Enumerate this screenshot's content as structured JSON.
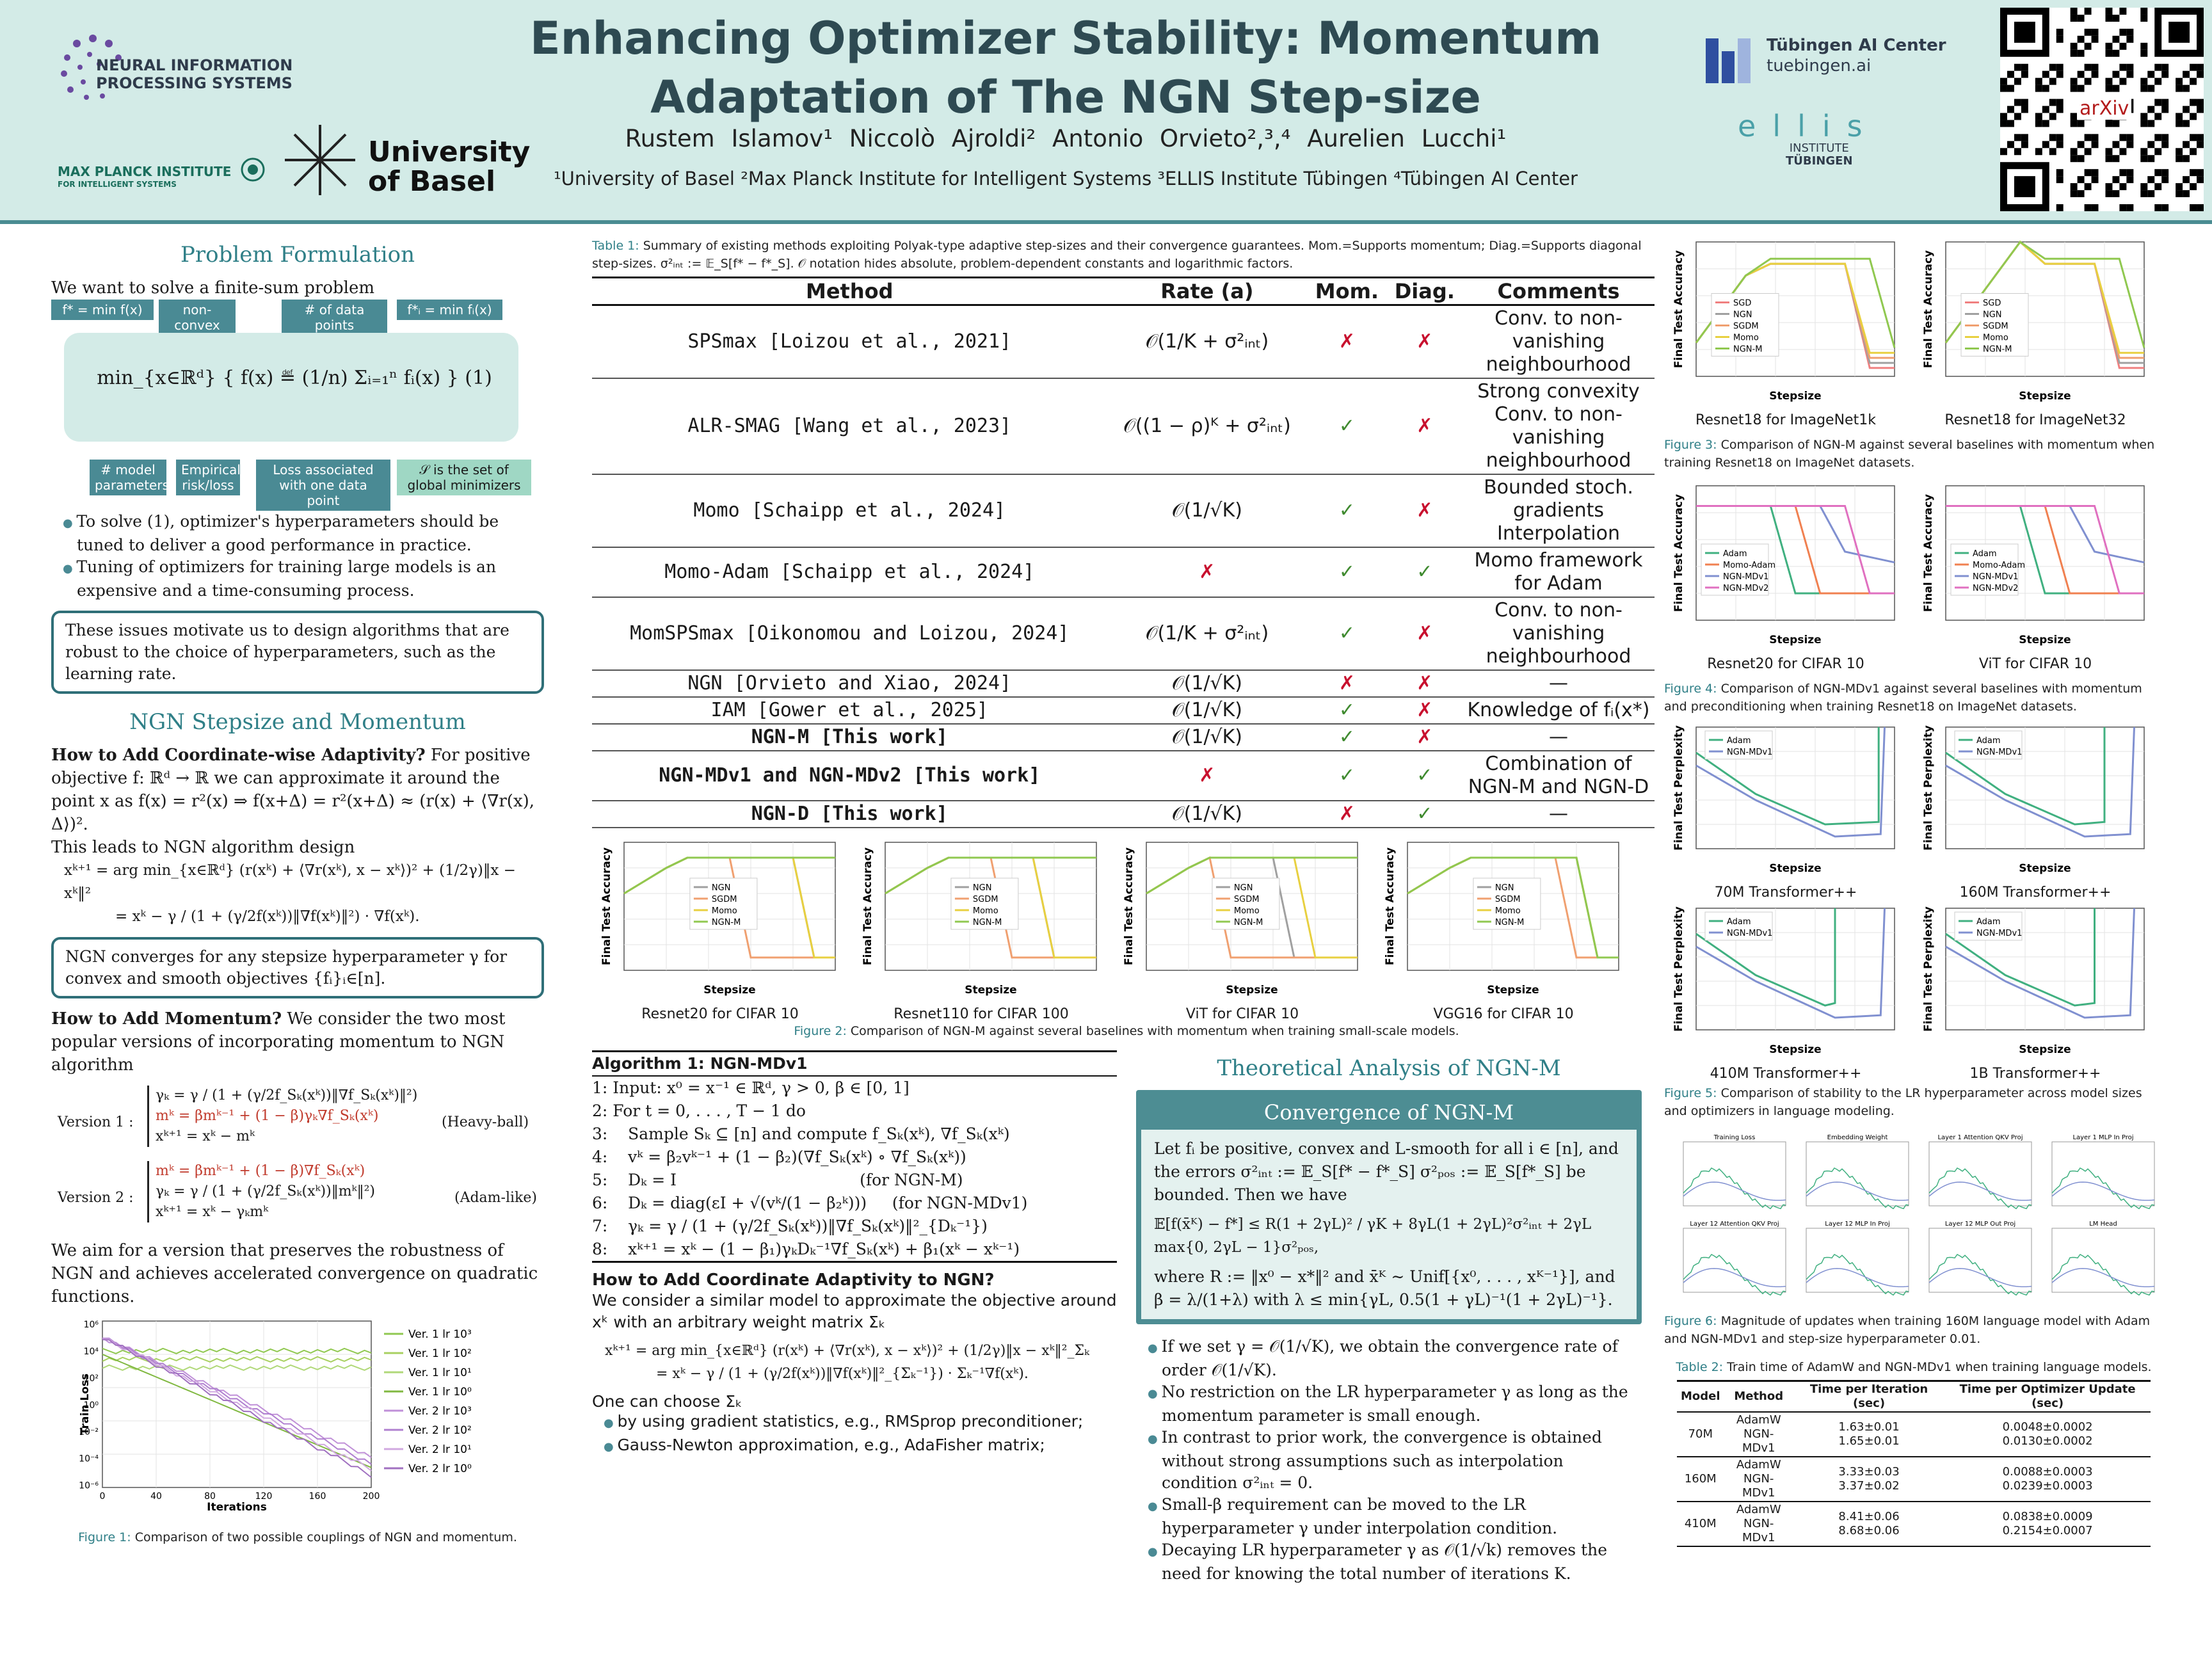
{
  "header": {
    "title": "Enhancing Optimizer Stability: Momentum Adaptation of The NGN Step-size",
    "authors": "Rustem Islamov¹   Niccolò Ajroldi²   Antonio Orvieto²,³,⁴   Aurelien Lucchi¹",
    "affiliations": "¹University of Basel   ²Max Planck Institute for Intelligent Systems   ³ELLIS Institute Tübingen   ⁴Tübingen AI Center",
    "logo_neurips_1": "NEURAL INFORMATION",
    "logo_neurips_2": "PROCESSING SYSTEMS",
    "logo_mpi_1": "MAX PLANCK INSTITUTE",
    "logo_mpi_2": "FOR INTELLIGENT SYSTEMS",
    "logo_basel_1": "University",
    "logo_basel_2": "of Basel",
    "logo_tue_1": "Tübingen AI Center",
    "logo_tue_2": "tuebingen.ai",
    "logo_ellis_1": "ellis",
    "logo_ellis_2": "INSTITUTE",
    "logo_ellis_3": "TÜBINGEN",
    "qr_label": "arXiv"
  },
  "left": {
    "sec1": "Problem Formulation",
    "intro": "We want to solve a finite-sum problem",
    "tag_fstar": "f* = min f(x)",
    "tag_nonconvex": "non-convex",
    "tag_ndata": "# of data points",
    "tag_fistar": "f*ᵢ = min fᵢ(x)",
    "eq1": "min_{x∈ℝᵈ} { f(x) ≝ (1/n) Σᵢ₌₁ⁿ fᵢ(x) }   (1)",
    "tag_params": "# model parameters",
    "tag_emp": "Empirical risk/loss",
    "tag_loss": "Loss associated with one data point",
    "tag_S": "𝒮 is the set of global minimizers",
    "b1": "To solve (1), optimizer's hyperparameters should be tuned to deliver a good performance in practice.",
    "b2": "Tuning of optimizers for training large models is an expensive and a time-consuming process.",
    "motivation": "These issues motivate us to design algorithms that are robust to the choice of hyperparameters, such as the learning rate.",
    "sec2": "NGN Stepsize and Momentum",
    "q1": "How to Add Coordinate-wise Adaptivity?",
    "q1_text": "For positive objective f: ℝᵈ → ℝ we can approximate it around the point x as f(x) = r²(x) ⇒ f(x+Δ) = r²(x+Δ) ≈ (r(x) + ⟨∇r(x), Δ⟩)².",
    "leads": "This leads to NGN algorithm design",
    "ngn_eq1": "xᵏ⁺¹ = arg min_{x∈ℝᵈ} (r(xᵏ) + ⟨∇r(xᵏ), x − xᵏ⟩)² + (1/2γ)‖x − xᵏ‖²",
    "ngn_eq2": "= xᵏ − γ / (1 + (γ/2f(xᵏ))‖∇f(xᵏ)‖²) · ∇f(xᵏ).",
    "converge_box": "NGN converges for any stepsize hyperparameter γ for convex and smooth objectives {fᵢ}ᵢ∈[n].",
    "q2": "How to Add Momentum?",
    "q2_text": "We consider the two most popular versions of incorporating momentum to NGN algorithm",
    "v1_label": "Version 1 :",
    "v1_l1": "γₖ = γ / (1 + (γ/2f_Sₖ(xᵏ))‖∇f_Sₖ(xᵏ)‖²)",
    "v1_l2": "mᵏ = βmᵏ⁻¹ + (1 − β)γₖ∇f_Sₖ(xᵏ)",
    "v1_l3": "xᵏ⁺¹ = xᵏ − mᵏ",
    "v1_tag": "(Heavy-ball)",
    "v2_label": "Version 2 :",
    "v2_l1": "mᵏ = βmᵏ⁻¹ + (1 − β)∇f_Sₖ(xᵏ)",
    "v2_l2": "γₖ = γ / (1 + (γ/2f_Sₖ(xᵏ))‖mᵏ‖²)",
    "v2_l3": "xᵏ⁺¹ = xᵏ − γₖmᵏ",
    "v2_tag": "(Adam-like)",
    "aim": "We aim for a version that preserves the robustness of NGN and achieves accelerated convergence on quadratic functions.",
    "fig1_label": "Figure 1:",
    "fig1_text": "Comparison of two possible couplings of NGN and momentum."
  },
  "fig1_chart": {
    "ylabel": "Train Loss",
    "xlabel": "Iterations",
    "xticks": [
      "0",
      "40",
      "80",
      "120",
      "160",
      "200"
    ],
    "yticks": [
      "10⁶",
      "10⁴",
      "10²",
      "10⁰",
      "10⁻²",
      "10⁻⁴",
      "10⁻⁶"
    ],
    "legend": [
      "Ver. 1 lr 10³",
      "Ver. 1 lr 10²",
      "Ver. 1 lr 10¹",
      "Ver. 1 lr 10⁰",
      "Ver. 2 lr 10³",
      "Ver. 2 lr 10²",
      "Ver. 2 lr 10¹",
      "Ver. 2 lr 10⁰"
    ]
  },
  "middle": {
    "table1_label": "Table 1:",
    "table1_caption": "Summary of existing methods exploiting Polyak-type adaptive step-sizes and their convergence guarantees. Mom.=Supports momentum; Diag.=Supports diagonal step-sizes. σ²ᵢₙₜ := 𝔼_S[f* − f*_S]. 𝒪 notation hides absolute, problem-dependent constants and logarithmic factors.",
    "headers": [
      "Method",
      "Rate (a)",
      "Mom.",
      "Diag.",
      "Comments"
    ],
    "rows": [
      {
        "method": "SPSmax [Loizou et al., 2021]",
        "rate": "𝒪(1/K + σ²ᵢₙₜ)",
        "mom": "✗",
        "diag": "✗",
        "comment": "Conv. to non-vanishing neighbourhood"
      },
      {
        "method": "ALR-SMAG [Wang et al., 2023]",
        "rate": "𝒪((1 − ρ)ᴷ + σ²ᵢₙₜ)",
        "mom": "✓",
        "diag": "✗",
        "comment": "Strong convexity Conv. to non-vanishing neighbourhood"
      },
      {
        "method": "Momo [Schaipp et al., 2024]",
        "rate": "𝒪(1/√K)",
        "mom": "✓",
        "diag": "✗",
        "comment": "Bounded stoch. gradients Interpolation"
      },
      {
        "method": "Momo-Adam [Schaipp et al., 2024]",
        "rate": "✗",
        "mom": "✓",
        "diag": "✓",
        "comment": "Momo framework for Adam"
      },
      {
        "method": "MomSPSmax [Oikonomou and Loizou, 2024]",
        "rate": "𝒪(1/K + σ²ᵢₙₜ)",
        "mom": "✓",
        "diag": "✗",
        "comment": "Conv. to non-vanishing neighbourhood"
      },
      {
        "method": "NGN [Orvieto and Xiao, 2024]",
        "rate": "𝒪(1/√K)",
        "mom": "✗",
        "diag": "✗",
        "comment": "—"
      },
      {
        "method": "IAM [Gower et al., 2025]",
        "rate": "𝒪(1/√K)",
        "mom": "✓",
        "diag": "✗",
        "comment": "Knowledge of fᵢ(x*)"
      },
      {
        "method": "NGN-M [This work]",
        "rate": "𝒪(1/√K)",
        "mom": "✓",
        "diag": "✗",
        "comment": "—"
      },
      {
        "method": "NGN-MDv1 and NGN-MDv2 [This work]",
        "rate": "✗",
        "mom": "✓",
        "diag": "✓",
        "comment": "Combination of NGN-M and NGN-D"
      },
      {
        "method": "NGN-D [This work]",
        "rate": "𝒪(1/√K)",
        "mom": "✗",
        "diag": "✓",
        "comment": "—"
      }
    ],
    "fig2_label": "Figure 2:",
    "fig2_text": "Comparison of NGN-M against several baselines with momentum when training small-scale models.",
    "fig2_captions": [
      "Resnet20 for CIFAR 10",
      "Resnet110 for CIFAR 100",
      "ViT for CIFAR 10",
      "VGG16 for CIFAR 10"
    ],
    "fig2_ylabel": "Final Test Accuracy",
    "fig2_xlabel": "Stepsize",
    "fig2_legend": [
      "NGN",
      "SGDM",
      "Momo",
      "NGN-M"
    ],
    "algo_title": "Algorithm 1: NGN-MDv1",
    "algo_lines": [
      "1: Input: x⁰ = x⁻¹ ∈ ℝᵈ, γ > 0, β ∈ [0, 1]",
      "2: For t = 0, . . . , T − 1 do",
      "3:    Sample Sₖ ⊆ [n] and compute f_Sₖ(xᵏ), ∇f_Sₖ(xᵏ)",
      "4:    vᵏ = β₂vᵏ⁻¹ + (1 − β₂)(∇f_Sₖ(xᵏ) ∘ ∇f_Sₖ(xᵏ))",
      "5:    Dₖ = I                                    (for NGN-M)",
      "6:    Dₖ = diag(εI + √(vᵏ/(1 − β₂ᵏ)))     (for NGN-MDv1)",
      "7:    γₖ = γ / (1 + (γ/2f_Sₖ(xᵏ))‖∇f_Sₖ(xᵏ)‖²_{Dₖ⁻¹})",
      "8:    xᵏ⁺¹ = xᵏ − (1 − β₁)γₖDₖ⁻¹∇f_Sₖ(xᵏ) + β₁(xᵏ − xᵏ⁻¹)"
    ],
    "q3": "How to Add Coordinate Adaptivity to NGN?",
    "q3_text": "We consider a similar model to approximate the objective around xᵏ with an arbitrary weight matrix Σₖ",
    "q3_eq1": "xᵏ⁺¹ = arg min_{x∈ℝᵈ} (r(xᵏ) + ⟨∇r(xᵏ), x − xᵏ⟩)² + (1/2γ)‖x − xᵏ‖²_Σₖ",
    "q3_eq2": "= xᵏ − γ / (1 + (γ/2f(xᵏ))‖∇f(xᵏ)‖²_{Σₖ⁻¹}) · Σₖ⁻¹∇f(xᵏ).",
    "choose": "One can choose Σₖ",
    "choose_b1": "by using gradient statistics, e.g., RMSprop preconditioner;",
    "choose_b2": "Gauss-Newton approximation, e.g., AdaFisher matrix;",
    "sec_theory": "Theoretical Analysis of NGN-M",
    "thm_title": "Convergence of NGN-M",
    "thm_p1": "Let fᵢ be positive, convex and L-smooth for all i ∈ [n], and the errors σ²ᵢₙₜ := 𝔼_S[f* − f*_S] σ²ₚₒₛ := 𝔼_S[f*_S] be bounded. Then we have",
    "thm_eq": "𝔼[f(x̄ᴷ) − f*] ≤ R(1 + 2γL)² / γK + 8γL(1 + 2γL)²σ²ᵢₙₜ + 2γL max{0, 2γL − 1}σ²ₚₒₛ,",
    "thm_p2": "where R := ‖x⁰ − x*‖² and x̄ᴷ ∼ Unif[{x⁰, . . . , xᴷ⁻¹}], and β = λ/(1+λ) with λ ≤ min{γL, 0.5(1 + γL)⁻¹(1 + 2γL)⁻¹}.",
    "tb1": "If we set γ = 𝒪(1/√K), we obtain the convergence rate of order 𝒪(1/√K).",
    "tb2": "No restriction on the LR hyperparameter γ as long as the momentum parameter is small enough.",
    "tb3": "In contrast to prior work, the convergence is obtained without strong assumptions such as interpolation condition σ²ᵢₙₜ = 0.",
    "tb4": "Small-β requirement can be moved to the LR hyperparameter γ under interpolation condition.",
    "tb5": "Decaying LR hyperparameter γ as 𝒪(1/√k) removes the need for knowing the total number of iterations K."
  },
  "right": {
    "fig3_caps": [
      "Resnet18 for ImageNet1k",
      "Resnet18 for ImageNet32"
    ],
    "fig3_legend": [
      "SGD",
      "NGN",
      "SGDM",
      "Momo",
      "NGN-M"
    ],
    "fig3_label": "Figure 3:",
    "fig3_text": "Comparison of NGN-M against several baselines with momentum when training Resnet18 on ImageNet datasets.",
    "fig4_caps": [
      "Resnet20 for CIFAR 10",
      "ViT for CIFAR 10"
    ],
    "fig4_legend": [
      "Adam",
      "Momo-Adam",
      "NGN-MDv1",
      "NGN-MDv2"
    ],
    "fig4_label": "Figure 4:",
    "fig4_text": "Comparison of NGN-MDv1 against several baselines with momentum and preconditioning when training Resnet18 on ImageNet datasets.",
    "fig5_caps": [
      "70M Transformer++",
      "160M Transformer++",
      "410M Transformer++",
      "1B Transformer++"
    ],
    "fig5_legend": [
      "Adam",
      "NGN-MDv1"
    ],
    "fig5_ylabel": "Final Test Perplexity",
    "fig5_label": "Figure 5:",
    "fig5_text": "Comparison of stability to the LR hyperparameter across model sizes and optimizers in language modeling.",
    "fig6_titles": [
      "Training Loss",
      "Embedding Weight",
      "Layer 1 Attention QKV Proj",
      "Layer 1 MLP In Proj",
      "Layer 12 Attention QKV Proj",
      "Layer 12 MLP In Proj",
      "Layer 12 MLP Out Proj",
      "LM Head"
    ],
    "fig6_label": "Figure 6:",
    "fig6_text": "Magnitude of updates when training 160M language model with Adam and NGN-MDv1 and step-size hyperparameter 0.01.",
    "table2_label": "Table 2:",
    "table2_text": "Train time of AdamW and NGN-MDv1 when training language models.",
    "table2_headers": [
      "Model",
      "Method",
      "Time per Iteration (sec)",
      "Time per Optimizer Update (sec)"
    ],
    "table2_rows": [
      {
        "model": "70M",
        "m1": "AdamW",
        "m2": "NGN-MDv1",
        "t1a": "1.63±0.01",
        "t1b": "1.65±0.01",
        "t2a": "0.0048±0.0002",
        "t2b": "0.0130±0.0002"
      },
      {
        "model": "160M",
        "m1": "AdamW",
        "m2": "NGN-MDv1",
        "t1a": "3.33±0.03",
        "t1b": "3.37±0.02",
        "t2a": "0.0088±0.0003",
        "t2b": "0.0239±0.0003"
      },
      {
        "model": "410M",
        "m1": "AdamW",
        "m2": "NGN-MDv1",
        "t1a": "8.41±0.06",
        "t1b": "8.68±0.06",
        "t2a": "0.0838±0.0009",
        "t2b": "0.2154±0.0007"
      }
    ]
  }
}
